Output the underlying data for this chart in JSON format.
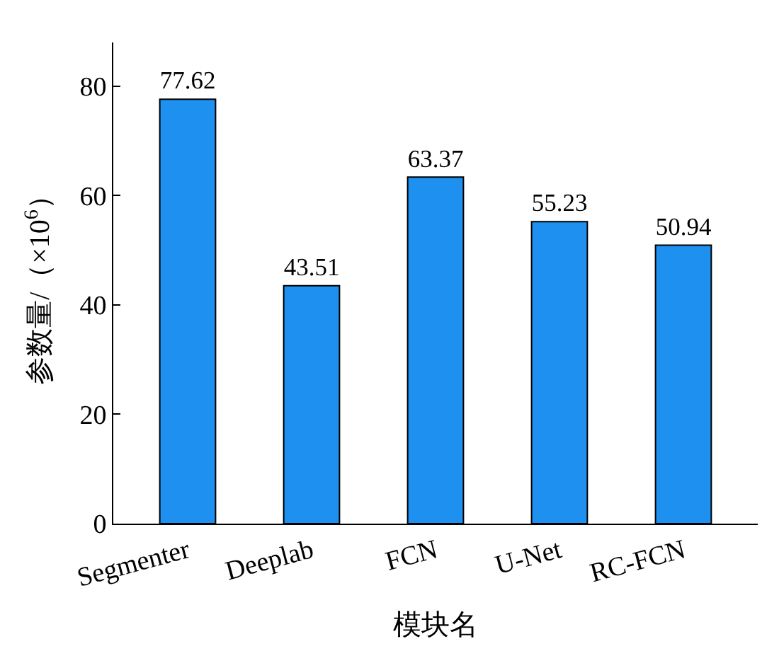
{
  "chart_data": {
    "type": "bar",
    "xlabel": "模块名",
    "ylabel": "参数量/（×10$^{6}$）",
    "categories": [
      "Segmenter",
      "Deeplab",
      "FCN",
      "U-Net",
      "RC-FCN"
    ],
    "values": [
      77.62,
      43.51,
      63.37,
      55.23,
      50.94
    ],
    "color": "#1e90f0",
    "ylim": [
      0,
      88
    ],
    "yticks": [
      0,
      20,
      40,
      60,
      80
    ],
    "data_labels": true
  }
}
